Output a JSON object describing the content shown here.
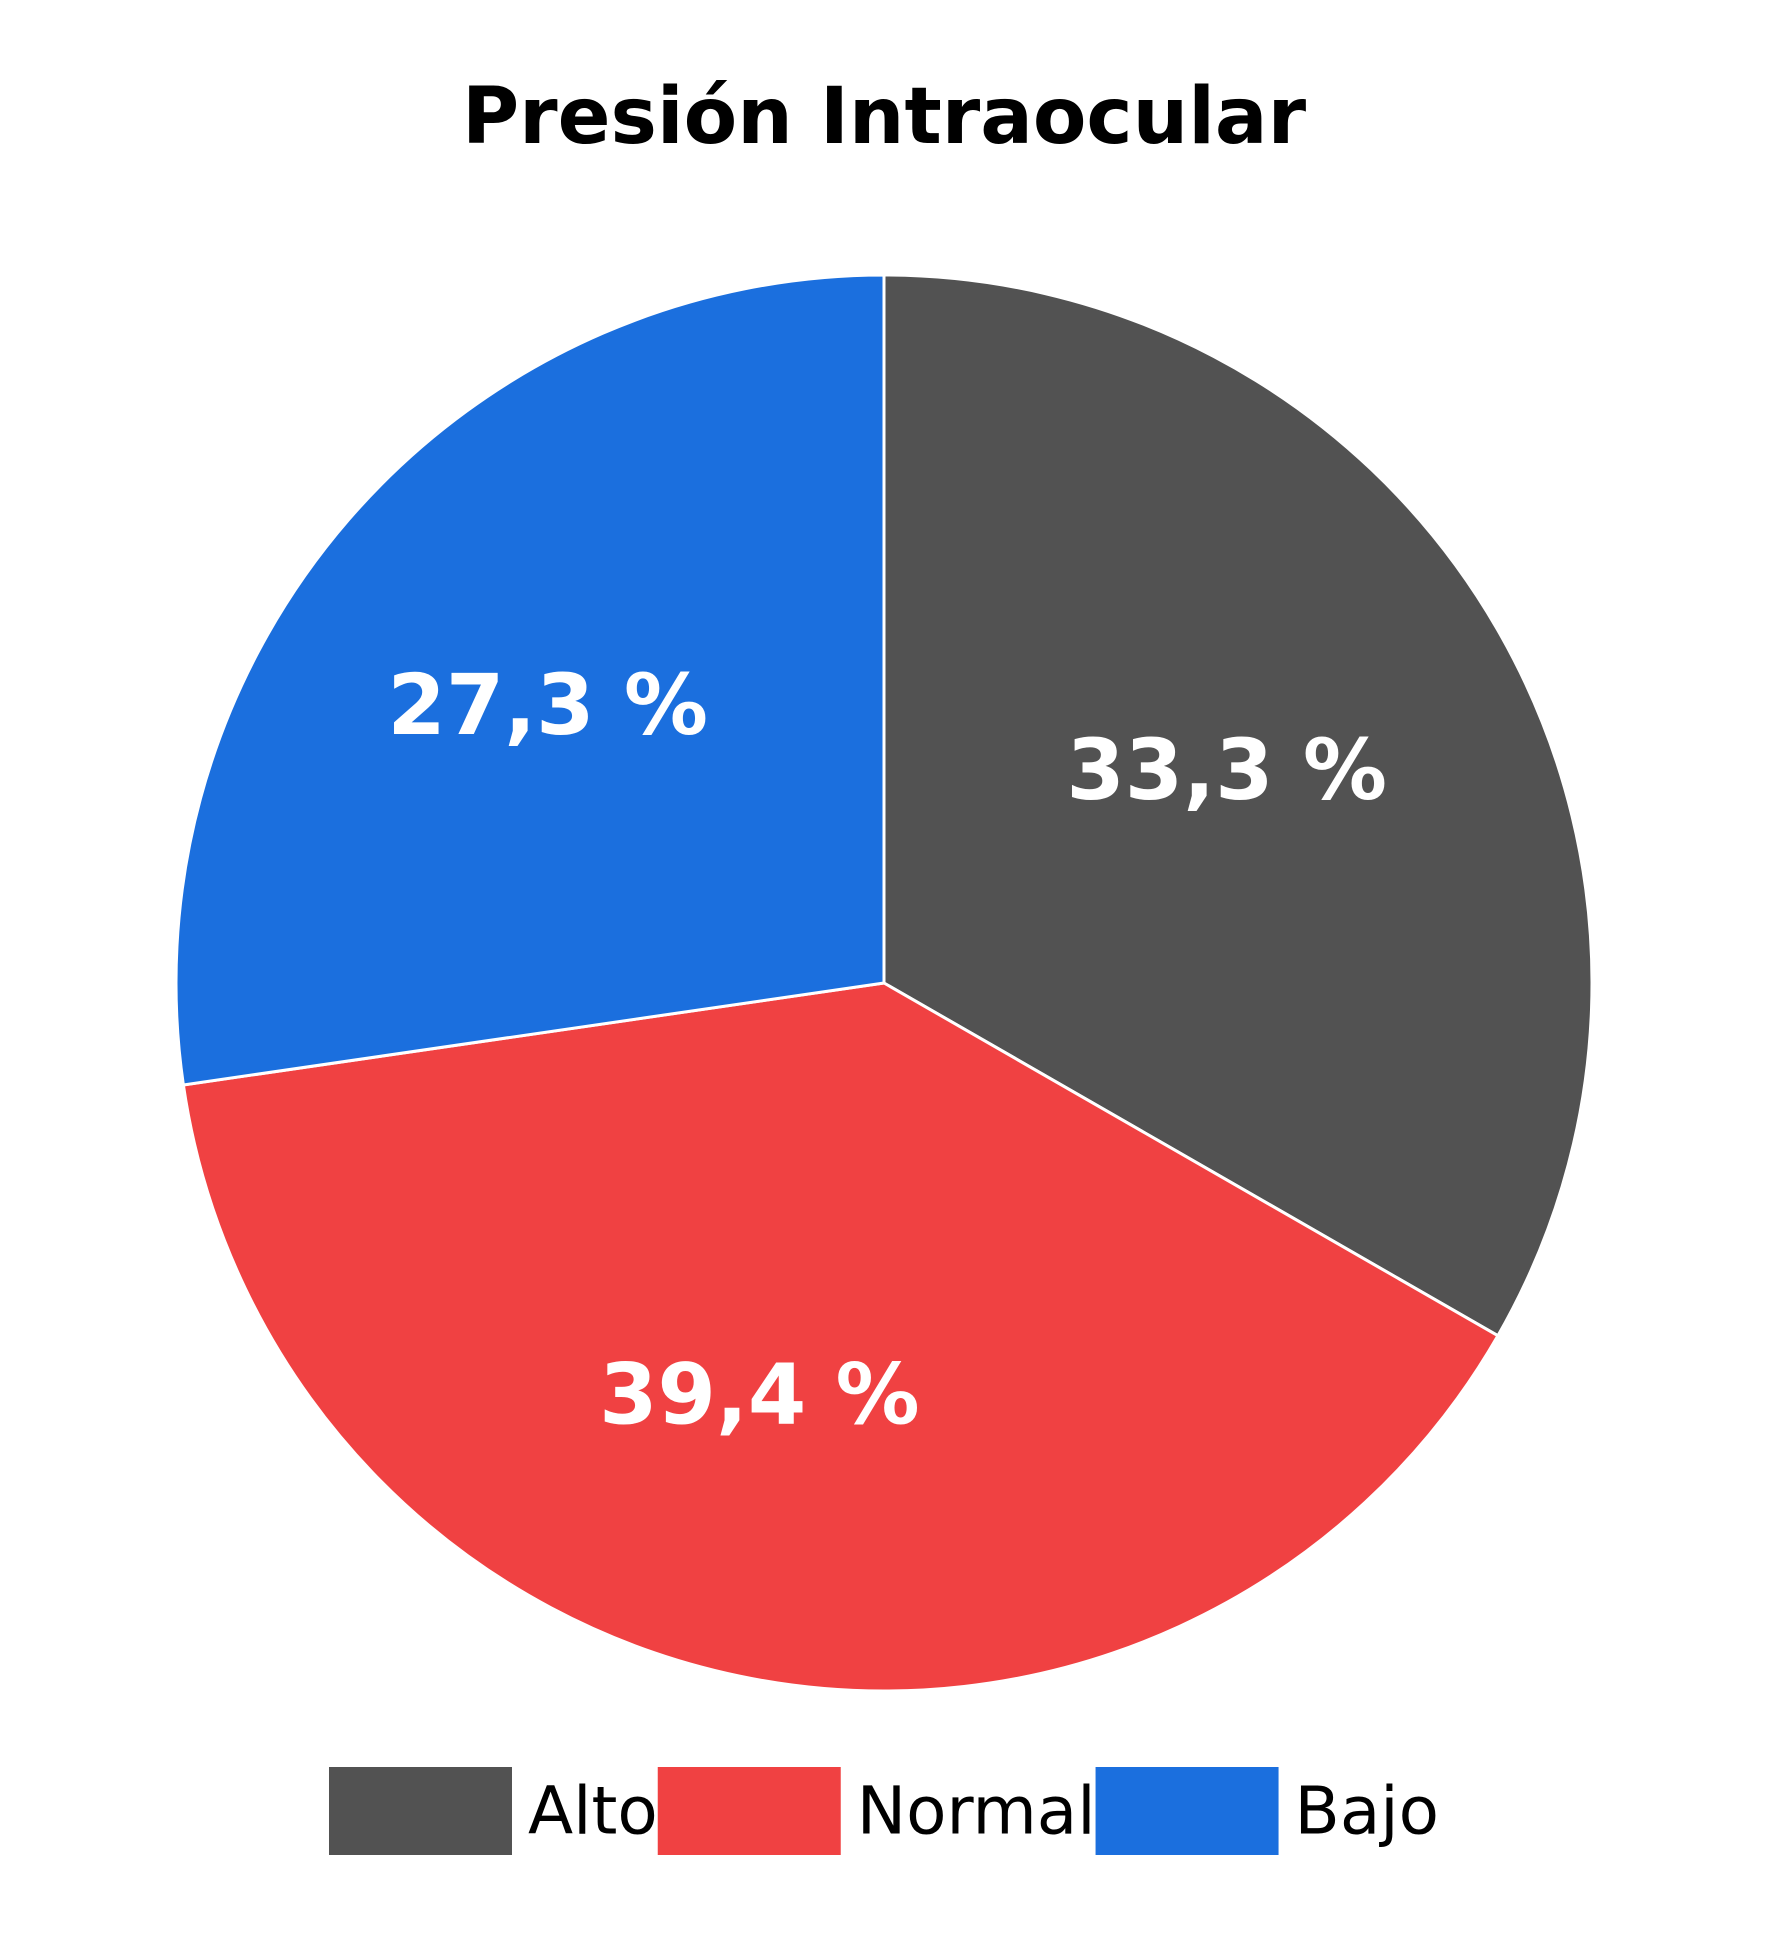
{
  "chart_data": {
    "type": "pie",
    "title": "Presión Intraocular",
    "categories": [
      "Alto",
      "Normal",
      "Bajo"
    ],
    "values": [
      33.3,
      39.4,
      27.3
    ],
    "value_labels": [
      "33,3 %",
      "39,4 %",
      "27,3 %"
    ],
    "colors": [
      "#525252",
      "#f04142",
      "#1b6fde"
    ],
    "start_angle": "12 o'clock",
    "direction": "clockwise",
    "legend_placement": "bottom-center"
  }
}
